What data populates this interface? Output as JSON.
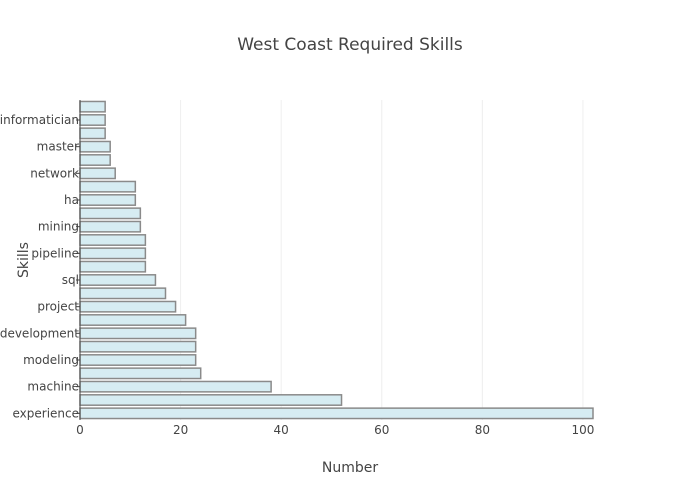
{
  "chart_data": {
    "type": "bar",
    "orientation": "horizontal",
    "title": "West Coast Required Skills",
    "xlabel": "Number",
    "ylabel": "Skills",
    "xlim": [
      0,
      102
    ],
    "xticks": [
      0,
      20,
      40,
      60,
      80,
      100
    ],
    "grid": true,
    "legend": false,
    "bar_color": "#d6ecf2",
    "bar_edge_color": "#8a8a8a",
    "categories": [
      "experience",
      "",
      "machine",
      "",
      "modeling",
      "",
      "development",
      "",
      "project",
      "",
      "sql",
      "",
      "pipeline",
      "",
      "mining",
      "",
      "ha",
      "",
      "network",
      "",
      "master",
      "",
      "bioinformatician",
      ""
    ],
    "values": [
      102,
      52,
      38,
      24,
      23,
      23,
      23,
      21,
      19,
      17,
      15,
      13,
      13,
      13,
      12,
      12,
      11,
      11,
      7,
      6,
      6,
      5,
      5,
      5
    ]
  }
}
